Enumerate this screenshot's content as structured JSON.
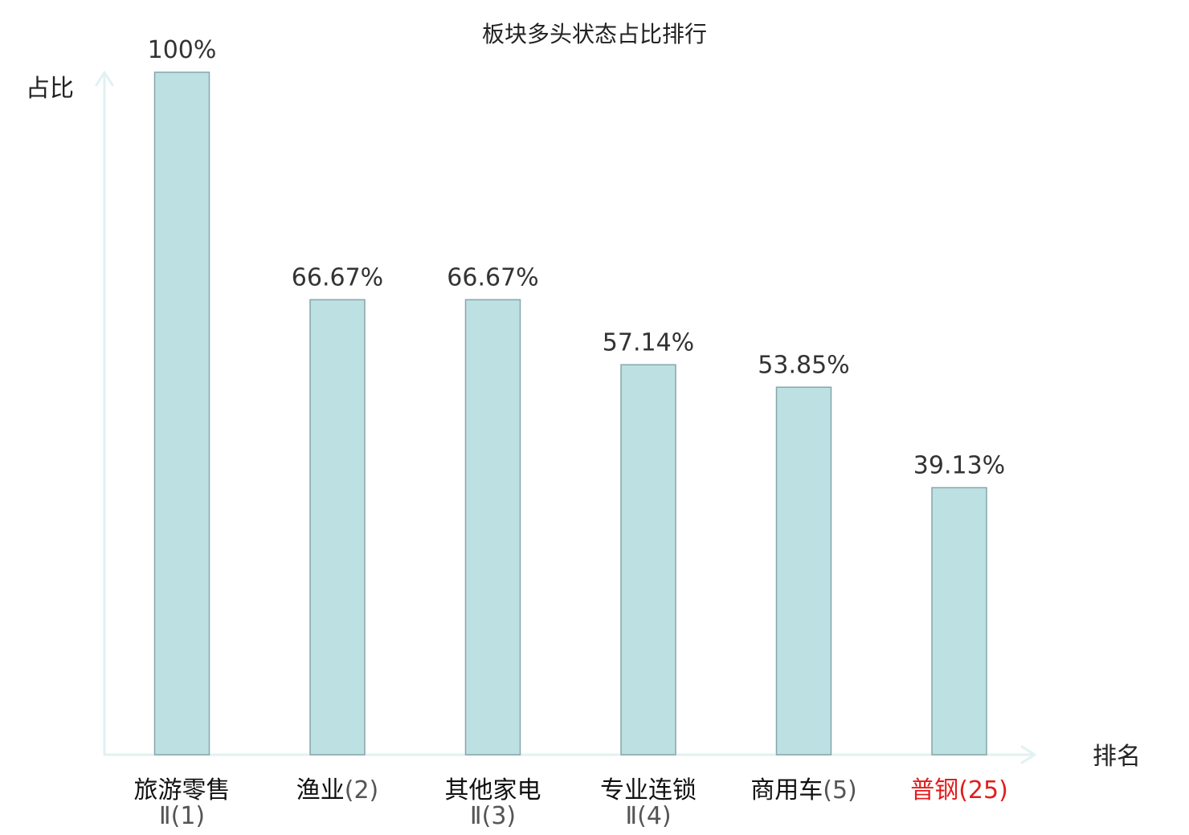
{
  "chart_data": {
    "type": "bar",
    "title": "板块多头状态占比排行",
    "ylabel": "占比",
    "xlabel": "排名",
    "ylim": [
      0,
      100
    ],
    "highlight_color": "#e11d1d",
    "bar_color": "#bde0e3",
    "categories": [
      {
        "name": "旅游零售",
        "line2": "Ⅱ",
        "rank": "(1)",
        "value": 100,
        "label": "100%",
        "highlight": false
      },
      {
        "name": "渔业",
        "line2": "",
        "rank": "(2)",
        "value": 66.67,
        "label": "66.67%",
        "highlight": false
      },
      {
        "name": "其他家电",
        "line2": "Ⅱ",
        "rank": "(3)",
        "value": 66.67,
        "label": "66.67%",
        "highlight": false
      },
      {
        "name": "专业连锁",
        "line2": "Ⅱ",
        "rank": "(4)",
        "value": 57.14,
        "label": "57.14%",
        "highlight": false
      },
      {
        "name": "商用车",
        "line2": "",
        "rank": "(5)",
        "value": 53.85,
        "label": "53.85%",
        "highlight": false
      },
      {
        "name": "普钢",
        "line2": "",
        "rank": "(25)",
        "value": 39.13,
        "label": "39.13%",
        "highlight": true
      }
    ]
  }
}
